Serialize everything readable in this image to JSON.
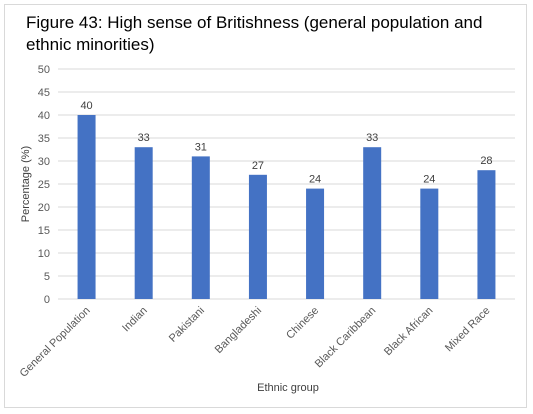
{
  "chart_data": {
    "type": "bar",
    "title": "Figure 43: High sense of Britishness (general population and ethnic minorities)",
    "xlabel": "Ethnic group",
    "ylabel": "Percentage (%)",
    "categories": [
      "General Population",
      "Indian",
      "Pakistani",
      "Bangladeshi",
      "Chinese",
      "Black Caribbean",
      "Black African",
      "Mixed Race"
    ],
    "values": [
      40,
      33,
      31,
      27,
      24,
      33,
      24,
      28
    ],
    "ylim": [
      0,
      50
    ],
    "yticks": [
      0,
      5,
      10,
      15,
      20,
      25,
      30,
      35,
      40,
      45,
      50
    ],
    "grid": true,
    "bar_color": "#4472c4",
    "gridline_color": "#d9d9d9"
  }
}
